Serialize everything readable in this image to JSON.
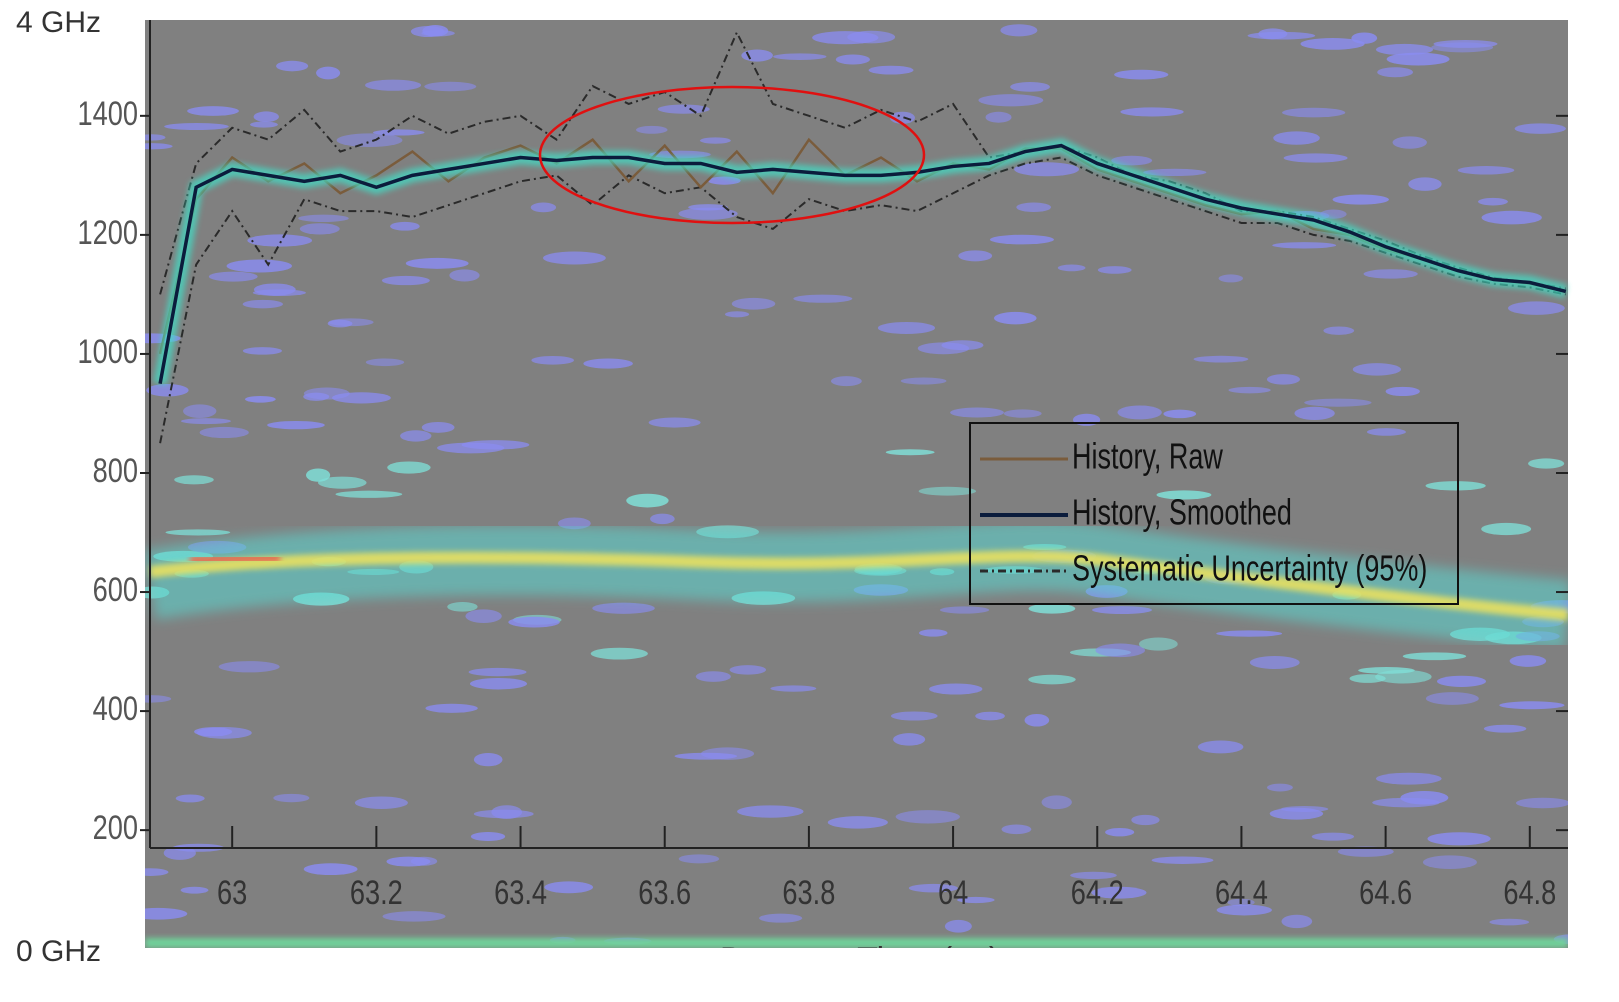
{
  "chart_data": {
    "type": "line",
    "top_label": "4 GHz",
    "bottom_label": "0 GHz",
    "x_label": "Detector Time (μs)",
    "xlim": [
      62.886,
      64.853
    ],
    "ylim": [
      170,
      1561
    ],
    "xticks": [
      63,
      63.2,
      63.4,
      63.6,
      63.8,
      64,
      64.2,
      64.4,
      64.6,
      64.8
    ],
    "yticks": [
      200,
      400,
      600,
      800,
      1000,
      1200,
      1400
    ],
    "legend": "right",
    "x": [
      62.9,
      62.95,
      63.0,
      63.05,
      63.1,
      63.15,
      63.2,
      63.25,
      63.3,
      63.35,
      63.4,
      63.45,
      63.5,
      63.55,
      63.6,
      63.65,
      63.7,
      63.75,
      63.8,
      63.85,
      63.9,
      63.95,
      64.0,
      64.05,
      64.1,
      64.15,
      64.2,
      64.25,
      64.3,
      64.35,
      64.4,
      64.45,
      64.5,
      64.55,
      64.6,
      64.65,
      64.7,
      64.75,
      64.8,
      64.85
    ],
    "series": [
      {
        "name": "History, Raw",
        "color": "#7a5c3c",
        "values": [
          1000,
          1260,
          1330,
          1290,
          1320,
          1270,
          1300,
          1340,
          1290,
          1330,
          1350,
          1320,
          1360,
          1290,
          1350,
          1280,
          1340,
          1270,
          1360,
          1300,
          1330,
          1290,
          1320,
          1310,
          1345,
          1345,
          1310,
          1290,
          1270,
          1250,
          1235,
          1240,
          1210,
          1200,
          1175,
          1160,
          1140,
          1125,
          1118,
          1105
        ]
      },
      {
        "name": "History, Smoothed",
        "color": "#0b1c3c",
        "values": [
          950,
          1280,
          1310,
          1300,
          1290,
          1300,
          1280,
          1300,
          1310,
          1320,
          1330,
          1325,
          1330,
          1330,
          1320,
          1320,
          1305,
          1310,
          1305,
          1300,
          1300,
          1305,
          1315,
          1320,
          1340,
          1350,
          1320,
          1300,
          1280,
          1260,
          1245,
          1235,
          1225,
          1205,
          1180,
          1160,
          1140,
          1125,
          1120,
          1105
        ]
      },
      {
        "name": "Systematic Uncertainty (95%)",
        "color": "#2a2a2a",
        "upper": [
          1100,
          1320,
          1380,
          1360,
          1410,
          1340,
          1360,
          1400,
          1370,
          1390,
          1400,
          1360,
          1450,
          1420,
          1440,
          1400,
          1540,
          1420,
          1400,
          1380,
          1410,
          1390,
          1420,
          1330,
          1340,
          1350,
          1330,
          1300,
          1290,
          1270,
          1240,
          1240,
          1230,
          1210,
          1190,
          1165,
          1145,
          1128,
          1120,
          1110
        ],
        "lower": [
          850,
          1150,
          1240,
          1150,
          1260,
          1240,
          1240,
          1230,
          1250,
          1270,
          1290,
          1300,
          1250,
          1300,
          1270,
          1280,
          1230,
          1210,
          1260,
          1240,
          1250,
          1240,
          1270,
          1300,
          1320,
          1330,
          1300,
          1280,
          1260,
          1240,
          1220,
          1220,
          1200,
          1190,
          1170,
          1150,
          1130,
          1118,
          1112,
          1100
        ]
      }
    ]
  }
}
